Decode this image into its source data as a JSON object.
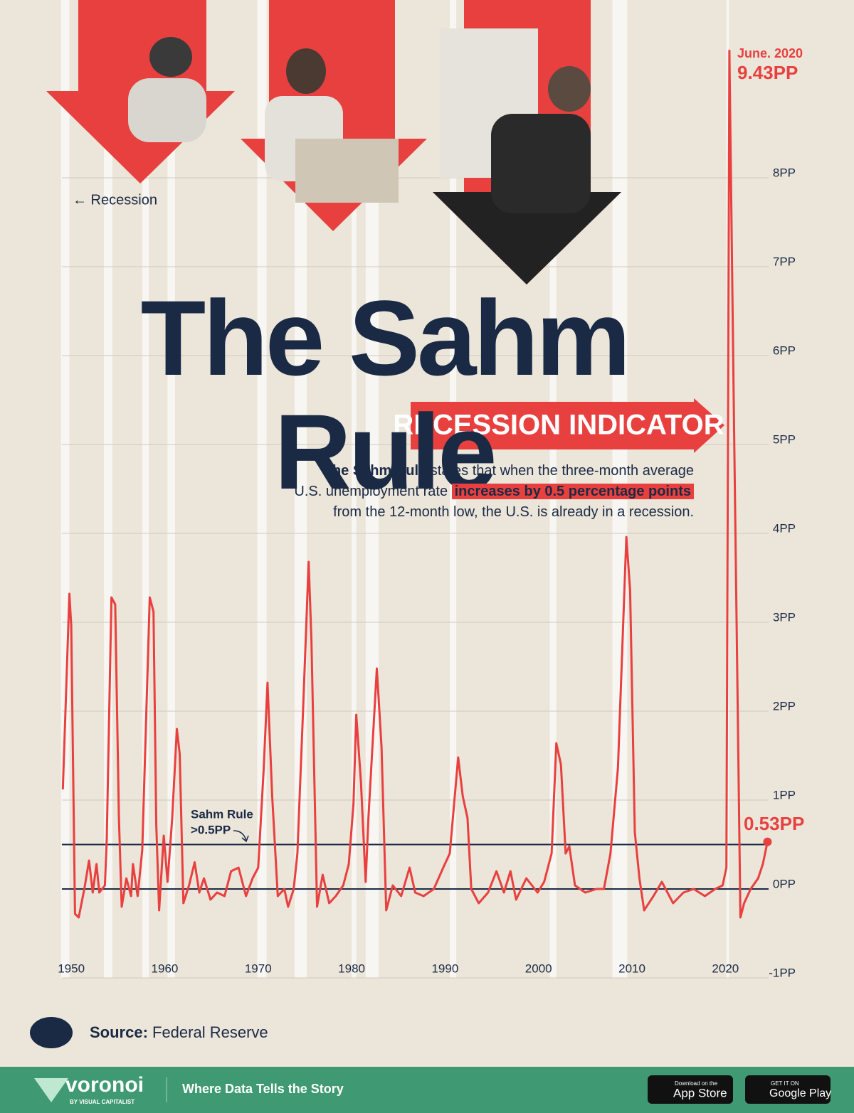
{
  "chart_data": {
    "type": "line",
    "title": "The Sahm Rule",
    "subtitle": "RECESSION INDICATOR",
    "description": [
      "The Sahm Rule",
      " states that when the three-month average",
      "U.S. unemployment rate ",
      "increases by 0.5 percentage points",
      "from the 12-month low, the U.S. is already in a recession."
    ],
    "recession_label": "← Recession",
    "threshold": 0.5,
    "threshold_label": [
      "Sahm Rule",
      ">0.5PP"
    ],
    "peak_date": "June. 2020",
    "peak_label": "9.43PP",
    "last_label": "0.53PP",
    "source_label": "Source:",
    "source": "Federal Reserve",
    "xlim": [
      1949,
      2025
    ],
    "ylim": [
      -1,
      10
    ],
    "xticks": [
      1950,
      1960,
      1970,
      1980,
      1990,
      2000,
      2010,
      2020
    ],
    "yticks": [
      {
        "value": -1,
        "label": "-1PP"
      },
      {
        "value": 0,
        "label": "0PP"
      },
      {
        "value": 1,
        "label": "1PP"
      },
      {
        "value": 2,
        "label": "2PP"
      },
      {
        "value": 3,
        "label": "3PP"
      },
      {
        "value": 4,
        "label": "4PP"
      },
      {
        "value": 5,
        "label": "5PP"
      },
      {
        "value": 6,
        "label": "6PP"
      },
      {
        "value": 7,
        "label": "7PP"
      },
      {
        "value": 8,
        "label": "8PP"
      }
    ],
    "grid": true,
    "recessions": [
      [
        1948.9,
        1949.8
      ],
      [
        1953.5,
        1954.4
      ],
      [
        1957.6,
        1958.3
      ],
      [
        1960.3,
        1961.1
      ],
      [
        1969.9,
        1970.9
      ],
      [
        1973.9,
        1975.2
      ],
      [
        1980.0,
        1980.5
      ],
      [
        1981.5,
        1982.9
      ],
      [
        1990.5,
        1991.2
      ],
      [
        2001.2,
        2001.9
      ],
      [
        2007.9,
        2009.5
      ],
      [
        2020.1,
        2020.4
      ]
    ],
    "x": [
      1949.1,
      1949.8,
      1950.0,
      1950.4,
      1950.8,
      1951.4,
      1951.9,
      1952.3,
      1952.7,
      1953.0,
      1953.6,
      1953.8,
      1954.3,
      1954.7,
      1955.1,
      1955.4,
      1955.9,
      1956.4,
      1956.6,
      1957.1,
      1957.6,
      1958.4,
      1958.8,
      1959.1,
      1959.4,
      1959.9,
      1960.3,
      1960.8,
      1961.3,
      1961.6,
      1962.0,
      1962.6,
      1963.2,
      1963.7,
      1964.2,
      1964.9,
      1965.6,
      1966.4,
      1967.1,
      1967.9,
      1968.7,
      1969.4,
      1970.0,
      1970.6,
      1971.0,
      1971.5,
      1972.1,
      1972.8,
      1973.2,
      1973.8,
      1974.2,
      1974.8,
      1975.4,
      1975.7,
      1976.3,
      1976.9,
      1977.6,
      1978.3,
      1979.1,
      1979.7,
      1980.2,
      1980.5,
      1981.0,
      1981.5,
      1981.8,
      1982.7,
      1983.2,
      1983.7,
      1984.4,
      1985.3,
      1986.2,
      1986.8,
      1987.7,
      1988.8,
      1989.8,
      1990.5,
      1991.4,
      1991.9,
      1992.4,
      1992.8,
      1993.6,
      1994.6,
      1995.5,
      1996.3,
      1997.0,
      1997.6,
      1998.7,
      1999.9,
      2000.6,
      2001.4,
      2001.9,
      2002.4,
      2002.9,
      2003.3,
      2003.9,
      2005.0,
      2006.2,
      2007.0,
      2007.7,
      2008.5,
      2009.4,
      2009.8,
      2010.3,
      2010.8,
      2011.3,
      2012.3,
      2013.2,
      2014.4,
      2015.5,
      2016.6,
      2017.8,
      2018.9,
      2019.7,
      2020.1,
      2020.42,
      2020.9,
      2021.2,
      2021.6,
      2022.0,
      2022.7,
      2023.5,
      2024.0,
      2024.5
    ],
    "series": [
      {
        "name": "Sahm Rule",
        "color": "#e8403f",
        "values": [
          1.12,
          3.32,
          2.96,
          -0.28,
          -0.32,
          0,
          0.32,
          -0.04,
          0.28,
          -0.04,
          0.04,
          0.56,
          3.28,
          3.2,
          0.8,
          -0.2,
          0.12,
          -0.08,
          0.28,
          -0.08,
          0.44,
          3.28,
          3.12,
          0.72,
          -0.24,
          0.6,
          0.08,
          0.8,
          1.8,
          1.52,
          -0.16,
          0.04,
          0.3,
          -0.04,
          0.12,
          -0.12,
          -0.04,
          -0.08,
          0.2,
          0.24,
          -0.08,
          0.12,
          0.24,
          1.36,
          2.32,
          1.04,
          -0.08,
          0,
          -0.2,
          0,
          0.4,
          2.0,
          3.68,
          2.8,
          -0.2,
          0.16,
          -0.16,
          -0.08,
          0.04,
          0.28,
          0.96,
          1.96,
          1.2,
          0.08,
          0.8,
          2.48,
          1.6,
          -0.24,
          0.04,
          -0.08,
          0.24,
          -0.04,
          -0.08,
          0,
          0.24,
          0.4,
          1.48,
          1.04,
          0.8,
          0,
          -0.16,
          -0.04,
          0.2,
          -0.04,
          0.2,
          -0.12,
          0.12,
          -0.04,
          0.08,
          0.4,
          1.64,
          1.4,
          0.4,
          0.48,
          0.04,
          -0.04,
          0,
          0,
          0.4,
          1.36,
          3.96,
          3.36,
          0.64,
          0.12,
          -0.24,
          -0.08,
          0.08,
          -0.16,
          -0.04,
          0,
          -0.08,
          0,
          0.04,
          0.24,
          9.43,
          5.36,
          2.96,
          -0.32,
          -0.16,
          0,
          0.12,
          0.28,
          0.53
        ]
      }
    ]
  },
  "footer": {
    "brand": "voronoi",
    "brand_sub": "BY VISUAL CAPITALIST",
    "tagline": "Where Data Tells the Story",
    "app_store": [
      "Download on the",
      "App Store"
    ],
    "google_play": [
      "GET IT ON",
      "Google Play"
    ]
  }
}
